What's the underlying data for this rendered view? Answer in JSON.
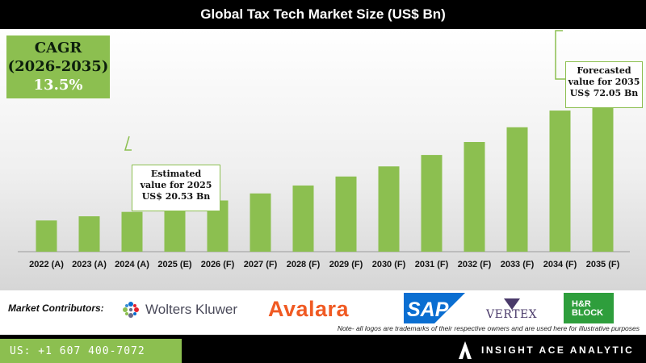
{
  "header": {
    "title": "Global Tax Tech Market Size (US$ Bn)"
  },
  "cagr": {
    "label": "CAGR",
    "period": "(2026-2035)",
    "value": "13.5%"
  },
  "callouts": {
    "c2025": {
      "line1": "Estimated",
      "line2": "value for 2025",
      "line3": "US$ 20.53 Bn"
    },
    "c2035": {
      "line1": "Forecasted",
      "line2": "value for 2035",
      "line3": "US$ 72.05 Bn"
    }
  },
  "chart_data": {
    "type": "bar",
    "categories": [
      "2022 (A)",
      "2023 (A)",
      "2024 (A)",
      "2025 (E)",
      "2026 (F)",
      "2027 (F)",
      "2028 (F)",
      "2029 (F)",
      "2030 (F)",
      "2031 (F)",
      "2032 (F)",
      "2033 (F)",
      "2034 (F)",
      "2035 (F)"
    ],
    "values": [
      14.2,
      16.1,
      18.1,
      20.53,
      23.3,
      26.5,
      30.1,
      34.2,
      38.8,
      44.0,
      49.9,
      56.6,
      64.2,
      72.05
    ],
    "title": "Global Tax Tech Market Size (US$ Bn)",
    "ylim": [
      0,
      80
    ],
    "bar_color": "#8cbf50",
    "grid": false,
    "legend": "none"
  },
  "contributors": {
    "label": "Market Contributors:",
    "logos": [
      "Wolters Kluwer",
      "Avalara",
      "SAP",
      "VERTEX",
      "H&R BLOCK"
    ],
    "note": "Note- all logos are trademarks of their respective owners and are used here for illustrative purposes"
  },
  "logo_text": {
    "wk": "Wolters Kluwer",
    "avalara": "Avalara",
    "sap": "SAP",
    "vertex": "VERTEX",
    "hr1": "H&R",
    "hr2": "BLOCK"
  },
  "footer": {
    "phone": "US: +1 607 400-7072",
    "brand": "INSIGHT ACE ANALYTIC"
  },
  "colors": {
    "accent": "#8cbf50",
    "avalara": "#f05a23",
    "sap": "#0a6ed1",
    "hr_block": "#2e9e3c"
  }
}
